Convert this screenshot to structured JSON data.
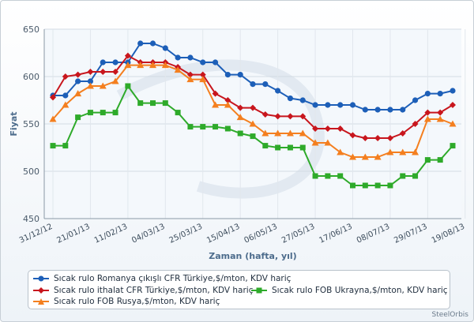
{
  "chart_data": {
    "type": "line",
    "title": "",
    "xlabel": "Zaman (hafta, yıl)",
    "ylabel": "Fiyat",
    "ylim": [
      450,
      650
    ],
    "yticks": [
      450,
      500,
      550,
      600,
      650
    ],
    "x_tick_labels": [
      "31/12/12",
      "21/01/13",
      "11/02/13",
      "04/03/13",
      "25/03/13",
      "15/04/13",
      "06/05/13",
      "27/05/13",
      "17/06/13",
      "08/07/13",
      "29/07/13",
      "19/08/13"
    ],
    "num_weeks": 33,
    "grid": true,
    "legend_position": "bottom",
    "series": [
      {
        "name": "Sıcak rulo Romanya çıkışlı CFR Türkiye,$/mton, KDV hariç",
        "color": "#1d5fb8",
        "marker": "circle",
        "values": [
          580,
          580,
          595,
          595,
          615,
          615,
          615,
          635,
          635,
          630,
          620,
          620,
          615,
          615,
          602,
          602,
          592,
          592,
          585,
          577,
          575,
          570,
          570,
          570,
          570,
          565,
          565,
          565,
          565,
          575,
          582,
          582,
          585
        ]
      },
      {
        "name": "Sıcak rulo ithalat CFR Türkiye,$/mton, KDV hariç",
        "color": "#c8161d",
        "marker": "diamond",
        "values": [
          578,
          600,
          602,
          605,
          605,
          605,
          622,
          615,
          615,
          615,
          610,
          602,
          602,
          582,
          575,
          567,
          567,
          560,
          558,
          558,
          558,
          545,
          545,
          545,
          538,
          535,
          535,
          535,
          540,
          550,
          562,
          562,
          570
        ]
      },
      {
        "name": "Sıcak rulo FOB Ukrayna,$/mton, KDV hariç",
        "color": "#2eaa2a",
        "marker": "square",
        "values": [
          527,
          527,
          557,
          562,
          562,
          562,
          590,
          572,
          572,
          572,
          562,
          547,
          547,
          547,
          545,
          540,
          537,
          527,
          525,
          525,
          525,
          495,
          495,
          495,
          485,
          485,
          485,
          485,
          495,
          495,
          512,
          512,
          527
        ]
      },
      {
        "name": "Sıcak rulo FOB Rusya,$/mton, KDV hariç",
        "color": "#f47f1f",
        "marker": "triangle",
        "values": [
          555,
          570,
          582,
          590,
          590,
          595,
          612,
          612,
          612,
          612,
          607,
          597,
          597,
          570,
          570,
          557,
          550,
          540,
          540,
          540,
          540,
          530,
          530,
          520,
          515,
          515,
          515,
          520,
          520,
          520,
          555,
          555,
          550
        ]
      }
    ]
  },
  "credit": "SteelOrbis"
}
